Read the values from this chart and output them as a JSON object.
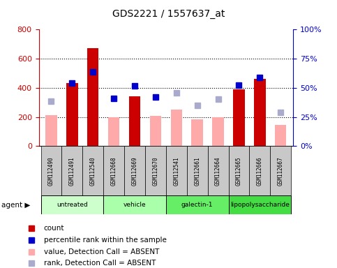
{
  "title": "GDS2221 / 1557637_at",
  "samples": [
    "GSM112490",
    "GSM112491",
    "GSM112540",
    "GSM112668",
    "GSM112669",
    "GSM112670",
    "GSM112541",
    "GSM112661",
    "GSM112664",
    "GSM112665",
    "GSM112666",
    "GSM112667"
  ],
  "groups": [
    {
      "label": "untreated",
      "indices": [
        0,
        1,
        2
      ],
      "color": "#ccffcc"
    },
    {
      "label": "vehicle",
      "indices": [
        3,
        4,
        5
      ],
      "color": "#aaffaa"
    },
    {
      "label": "galectin-1",
      "indices": [
        6,
        7,
        8
      ],
      "color": "#66ee66"
    },
    {
      "label": "lipopolysaccharide",
      "indices": [
        9,
        10,
        11
      ],
      "color": "#44dd44"
    }
  ],
  "count_values": [
    null,
    430,
    670,
    null,
    340,
    null,
    null,
    null,
    null,
    390,
    460,
    null
  ],
  "count_absent": [
    210,
    null,
    null,
    200,
    null,
    205,
    248,
    183,
    198,
    null,
    null,
    143
  ],
  "rank_values": [
    null,
    430,
    510,
    328,
    415,
    338,
    null,
    null,
    null,
    420,
    470,
    null
  ],
  "rank_absent": [
    307,
    null,
    null,
    null,
    null,
    null,
    363,
    278,
    320,
    null,
    null,
    232
  ],
  "ylim_left": [
    0,
    800
  ],
  "ylim_right": [
    0,
    100
  ],
  "yticks_left": [
    0,
    200,
    400,
    600,
    800
  ],
  "yticks_right": [
    0,
    25,
    50,
    75,
    100
  ],
  "yticklabels_right": [
    "0%",
    "25%",
    "50%",
    "75%",
    "100%"
  ],
  "count_color": "#cc0000",
  "count_absent_color": "#ffaaaa",
  "rank_color": "#0000cc",
  "rank_absent_color": "#aaaacc",
  "sample_box_color": "#c8c8c8",
  "legend_items": [
    {
      "color": "#cc0000",
      "label": "count"
    },
    {
      "color": "#0000cc",
      "label": "percentile rank within the sample"
    },
    {
      "color": "#ffaaaa",
      "label": "value, Detection Call = ABSENT"
    },
    {
      "color": "#aaaacc",
      "label": "rank, Detection Call = ABSENT"
    }
  ]
}
